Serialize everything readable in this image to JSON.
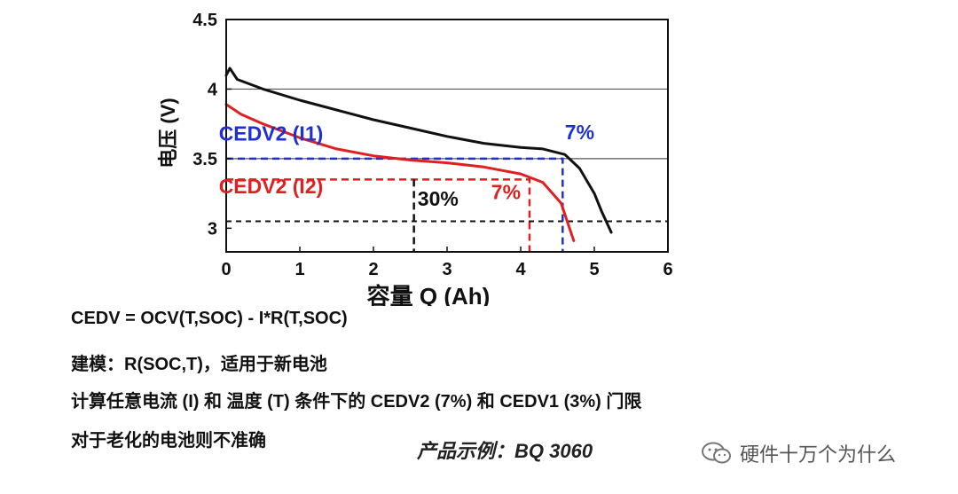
{
  "chart_data": {
    "type": "line",
    "xlabel": "容量 Q (Ah)",
    "ylabel": "电压 (V)",
    "xlim": [
      0,
      6
    ],
    "ylim": [
      2.83,
      4.5
    ],
    "xticks": [
      "0",
      "1",
      "2",
      "3",
      "4",
      "5",
      "6"
    ],
    "yticks": [
      {
        "value": 4.5,
        "label": "4.5"
      },
      {
        "value": 4.0,
        "label": "4"
      },
      {
        "value": 3.5,
        "label": "3.5"
      },
      {
        "value": 3.0,
        "label": "3"
      }
    ],
    "series": [
      {
        "color": "#111111",
        "x": [
          0,
          0.05,
          0.15,
          0.5,
          1.0,
          1.5,
          2.0,
          2.5,
          3.0,
          3.5,
          4.0,
          4.3,
          4.6,
          4.8,
          5.0,
          5.1,
          5.23
        ],
        "y": [
          4.1,
          4.15,
          4.07,
          4.0,
          3.92,
          3.85,
          3.78,
          3.72,
          3.66,
          3.61,
          3.58,
          3.57,
          3.53,
          3.43,
          3.25,
          3.12,
          2.97
        ]
      },
      {
        "color": "#e02020",
        "x": [
          0,
          0.2,
          0.5,
          1.0,
          1.5,
          2.0,
          2.5,
          3.0,
          3.5,
          4.0,
          4.3,
          4.55,
          4.65,
          4.72
        ],
        "y": [
          3.89,
          3.82,
          3.75,
          3.65,
          3.57,
          3.52,
          3.49,
          3.47,
          3.44,
          3.39,
          3.33,
          3.18,
          3.02,
          2.91
        ]
      }
    ],
    "reference_lines": [
      {
        "type": "h",
        "y": 4.0,
        "style": "solid",
        "color": "#555555"
      },
      {
        "type": "h",
        "y": 3.5,
        "style": "solid",
        "color": "#555555"
      },
      {
        "type": "h",
        "y": 3.05,
        "style": "dashed",
        "color": "#111111"
      }
    ],
    "threshold_guides": [
      {
        "color": "#2030d0",
        "y": 3.5,
        "x_end": 4.57
      },
      {
        "color": "#e02020",
        "y": 3.35,
        "x_end": 4.12
      },
      {
        "color": "#111111",
        "x": 2.55,
        "y_start": 3.35
      }
    ],
    "annotations": [
      {
        "text": "CEDV2 (I1)",
        "color": "#2030d0",
        "x": -0.1,
        "y": 3.63
      },
      {
        "text": "7%",
        "color": "#2030d0",
        "x": 4.6,
        "y": 3.64
      },
      {
        "text": "CEDV2 (I2)",
        "color": "#e02020",
        "x": -0.1,
        "y": 3.25
      },
      {
        "text": "30%",
        "color": "#111111",
        "x": 2.6,
        "y": 3.16
      },
      {
        "text": "7%",
        "color": "#e02020",
        "x": 3.6,
        "y": 3.21
      }
    ]
  },
  "text": {
    "formula": "CEDV = OCV(T,SOC) - I*R(T,SOC)",
    "modeling": "建模：R(SOC,T)，适用于新电池",
    "calc": "计算任意电流 (I) 和 温度 (T) 条件下的 CEDV2 (7%) 和 CEDV1 (3%) 门限",
    "aging": "对于老化的电池则不准确",
    "example": "产品示例：BQ 3060",
    "watermark": "硬件十万个为什么"
  },
  "icons": {
    "watermark": "wechat-icon"
  }
}
